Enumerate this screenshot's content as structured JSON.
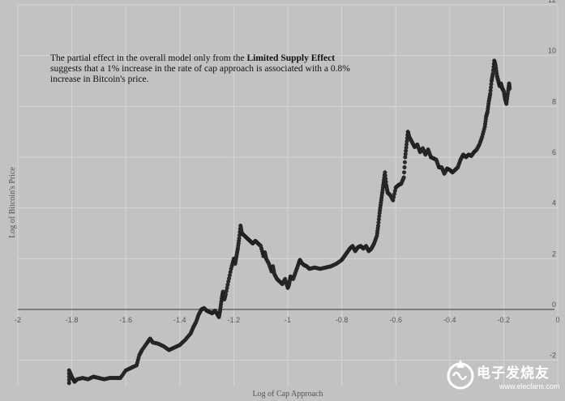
{
  "chart_data": {
    "type": "scatter",
    "title": "",
    "xlabel": "Log of Cap Approach",
    "ylabel": "Log  of  Bitcoin's Price",
    "xlim": [
      -2,
      0
    ],
    "ylim": [
      -3,
      12
    ],
    "x_ticks": [
      -2,
      -1.8,
      -1.6,
      -1.4,
      -1.2,
      -1,
      -0.8,
      -0.6,
      -0.4,
      -0.2,
      0
    ],
    "x_tick_labels": [
      "-2",
      "-1.8",
      "-1.6",
      "-1.4",
      "-1.2",
      "-1",
      "-0.8",
      "-0.6",
      "-0.4",
      "-0.2",
      "0"
    ],
    "y_ticks": [
      -2,
      0,
      2,
      4,
      6,
      8,
      10,
      12
    ],
    "y_tick_labels": [
      "-2",
      "0",
      "2",
      "4",
      "6",
      "8",
      "10",
      "12"
    ],
    "grid": true,
    "point_color": "#2b2b2b",
    "series": [
      {
        "points": [
          [
            -1.81,
            -2.9
          ],
          [
            -1.81,
            -2.4
          ],
          [
            -1.8,
            -2.65
          ],
          [
            -1.79,
            -2.85
          ],
          [
            -1.78,
            -2.75
          ],
          [
            -1.76,
            -2.7
          ],
          [
            -1.74,
            -2.75
          ],
          [
            -1.72,
            -2.65
          ],
          [
            -1.7,
            -2.7
          ],
          [
            -1.68,
            -2.75
          ],
          [
            -1.66,
            -2.7
          ],
          [
            -1.64,
            -2.7
          ],
          [
            -1.62,
            -2.7
          ],
          [
            -1.6,
            -2.4
          ],
          [
            -1.58,
            -2.3
          ],
          [
            -1.56,
            -2.2
          ],
          [
            -1.55,
            -1.8
          ],
          [
            -1.54,
            -1.6
          ],
          [
            -1.52,
            -1.3
          ],
          [
            -1.51,
            -1.15
          ],
          [
            -1.5,
            -1.3
          ],
          [
            -1.48,
            -1.35
          ],
          [
            -1.46,
            -1.45
          ],
          [
            -1.44,
            -1.6
          ],
          [
            -1.42,
            -1.5
          ],
          [
            -1.4,
            -1.4
          ],
          [
            -1.38,
            -1.2
          ],
          [
            -1.36,
            -0.95
          ],
          [
            -1.35,
            -0.7
          ],
          [
            -1.34,
            -0.5
          ],
          [
            -1.33,
            -0.2
          ],
          [
            -1.32,
            0.0
          ],
          [
            -1.31,
            0.05
          ],
          [
            -1.3,
            -0.05
          ],
          [
            -1.29,
            -0.1
          ],
          [
            -1.28,
            -0.15
          ],
          [
            -1.27,
            -0.05
          ],
          [
            -1.26,
            -0.2
          ],
          [
            -1.255,
            -0.3
          ],
          [
            -1.25,
            0.0
          ],
          [
            -1.245,
            0.4
          ],
          [
            -1.24,
            0.7
          ],
          [
            -1.235,
            0.4
          ],
          [
            -1.23,
            0.6
          ],
          [
            -1.22,
            1.1
          ],
          [
            -1.21,
            1.6
          ],
          [
            -1.2,
            2.0
          ],
          [
            -1.195,
            1.8
          ],
          [
            -1.19,
            2.1
          ],
          [
            -1.185,
            2.4
          ],
          [
            -1.18,
            2.8
          ],
          [
            -1.175,
            3.3
          ],
          [
            -1.17,
            3.0
          ],
          [
            -1.16,
            2.9
          ],
          [
            -1.15,
            2.8
          ],
          [
            -1.14,
            2.7
          ],
          [
            -1.13,
            2.6
          ],
          [
            -1.12,
            2.7
          ],
          [
            -1.11,
            2.6
          ],
          [
            -1.1,
            2.5
          ],
          [
            -1.09,
            2.1
          ],
          [
            -1.085,
            2.25
          ],
          [
            -1.08,
            2.0
          ],
          [
            -1.07,
            1.8
          ],
          [
            -1.06,
            1.5
          ],
          [
            -1.055,
            1.7
          ],
          [
            -1.05,
            1.4
          ],
          [
            -1.04,
            1.2
          ],
          [
            -1.03,
            1.1
          ],
          [
            -1.02,
            1.0
          ],
          [
            -1.01,
            1.2
          ],
          [
            -1.0,
            0.85
          ],
          [
            -0.995,
            1.0
          ],
          [
            -0.99,
            1.3
          ],
          [
            -0.98,
            1.2
          ],
          [
            -0.97,
            1.5
          ],
          [
            -0.96,
            1.8
          ],
          [
            -0.955,
            1.95
          ],
          [
            -0.95,
            1.85
          ],
          [
            -0.94,
            1.75
          ],
          [
            -0.93,
            1.7
          ],
          [
            -0.92,
            1.6
          ],
          [
            -0.9,
            1.65
          ],
          [
            -0.88,
            1.6
          ],
          [
            -0.86,
            1.65
          ],
          [
            -0.84,
            1.7
          ],
          [
            -0.82,
            1.8
          ],
          [
            -0.8,
            1.95
          ],
          [
            -0.79,
            2.1
          ],
          [
            -0.78,
            2.25
          ],
          [
            -0.77,
            2.4
          ],
          [
            -0.76,
            2.5
          ],
          [
            -0.75,
            2.3
          ],
          [
            -0.74,
            2.45
          ],
          [
            -0.73,
            2.5
          ],
          [
            -0.72,
            2.4
          ],
          [
            -0.71,
            2.5
          ],
          [
            -0.7,
            2.3
          ],
          [
            -0.69,
            2.4
          ],
          [
            -0.68,
            2.6
          ],
          [
            -0.67,
            2.9
          ],
          [
            -0.665,
            3.3
          ],
          [
            -0.66,
            3.8
          ],
          [
            -0.655,
            4.2
          ],
          [
            -0.65,
            4.6
          ],
          [
            -0.645,
            5.0
          ],
          [
            -0.64,
            5.4
          ],
          [
            -0.635,
            4.9
          ],
          [
            -0.63,
            4.6
          ],
          [
            -0.62,
            4.5
          ],
          [
            -0.61,
            4.3
          ],
          [
            -0.6,
            4.8
          ],
          [
            -0.59,
            4.9
          ],
          [
            -0.58,
            4.95
          ],
          [
            -0.57,
            5.2
          ],
          [
            -0.565,
            6.0
          ],
          [
            -0.56,
            6.5
          ],
          [
            -0.555,
            7.0
          ],
          [
            -0.55,
            6.8
          ],
          [
            -0.54,
            6.6
          ],
          [
            -0.53,
            6.4
          ],
          [
            -0.52,
            6.5
          ],
          [
            -0.51,
            6.2
          ],
          [
            -0.5,
            6.35
          ],
          [
            -0.49,
            6.1
          ],
          [
            -0.48,
            6.3
          ],
          [
            -0.47,
            6.0
          ],
          [
            -0.46,
            5.95
          ],
          [
            -0.45,
            5.9
          ],
          [
            -0.44,
            5.6
          ],
          [
            -0.43,
            5.6
          ],
          [
            -0.42,
            5.35
          ],
          [
            -0.41,
            5.55
          ],
          [
            -0.4,
            5.5
          ],
          [
            -0.39,
            5.4
          ],
          [
            -0.38,
            5.5
          ],
          [
            -0.37,
            5.6
          ],
          [
            -0.36,
            5.9
          ],
          [
            -0.35,
            6.1
          ],
          [
            -0.34,
            6.0
          ],
          [
            -0.33,
            6.1
          ],
          [
            -0.32,
            6.05
          ],
          [
            -0.31,
            6.2
          ],
          [
            -0.3,
            6.3
          ],
          [
            -0.29,
            6.5
          ],
          [
            -0.28,
            6.8
          ],
          [
            -0.27,
            7.2
          ],
          [
            -0.265,
            7.6
          ],
          [
            -0.26,
            7.8
          ],
          [
            -0.255,
            8.2
          ],
          [
            -0.25,
            8.5
          ],
          [
            -0.245,
            9.0
          ],
          [
            -0.24,
            9.3
          ],
          [
            -0.235,
            9.8
          ],
          [
            -0.23,
            9.6
          ],
          [
            -0.225,
            9.2
          ],
          [
            -0.22,
            9.0
          ],
          [
            -0.215,
            8.8
          ],
          [
            -0.21,
            8.9
          ],
          [
            -0.205,
            8.7
          ],
          [
            -0.2,
            8.6
          ],
          [
            -0.195,
            8.3
          ],
          [
            -0.19,
            8.1
          ],
          [
            -0.185,
            8.5
          ],
          [
            -0.18,
            8.9
          ],
          [
            -0.178,
            8.7
          ]
        ]
      }
    ]
  },
  "annotation": {
    "line1_pre": "The partial effect in the overall model only from the ",
    "line1_bold": "Limited Supply Effect",
    "rest": "suggests that a 1% increase in the rate of cap approach is associated with a 0.8% increase in Bitcoin's price."
  },
  "watermark": {
    "name": "电子发烧友",
    "url": "www.elecfans.com",
    "color": "#ffffff"
  }
}
